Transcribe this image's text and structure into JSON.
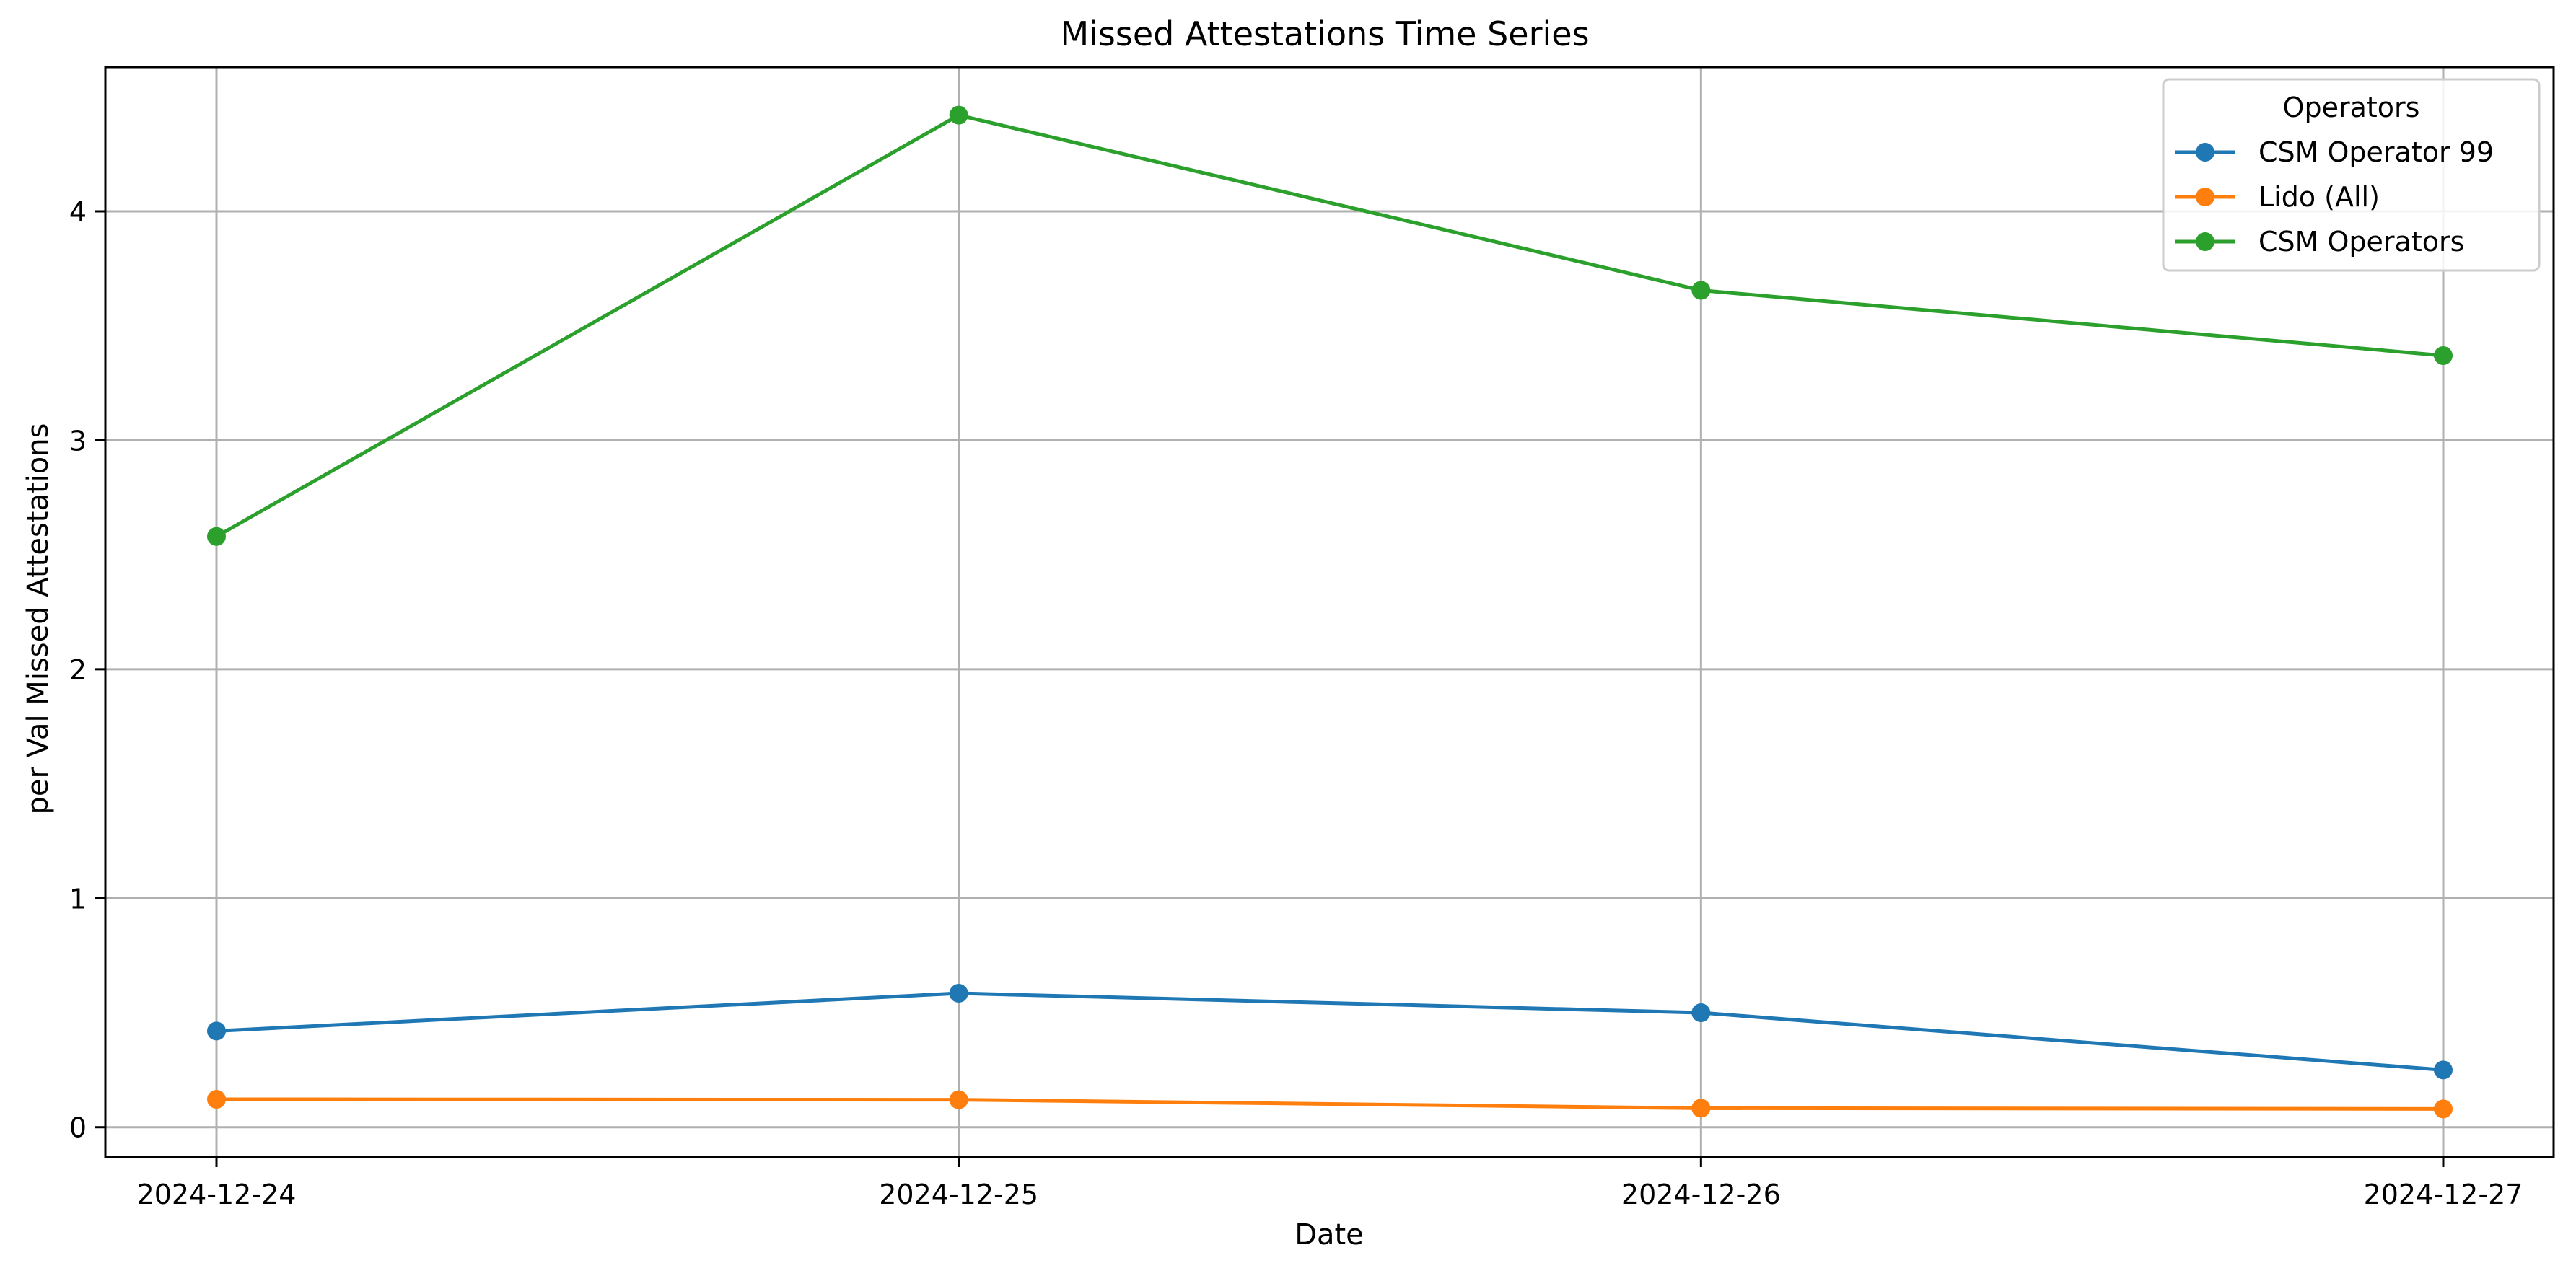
{
  "chart_data": {
    "type": "line",
    "title": "Missed Attestations Time Series",
    "xlabel": "Date",
    "ylabel": "per Val Missed Attestations",
    "x": [
      "2024-12-24",
      "2024-12-25",
      "2024-12-26",
      "2024-12-27"
    ],
    "ylim": [
      -0.13,
      4.63
    ],
    "y_ticks": [
      "0",
      "1",
      "2",
      "3",
      "4"
    ],
    "grid": true,
    "legend": {
      "title": "Operators",
      "placement": "top-right"
    },
    "series": [
      {
        "name": "CSM Operator 99",
        "color": "#1f77b4",
        "marker": "circle",
        "values": [
          0.42,
          0.585,
          0.5,
          0.25
        ]
      },
      {
        "name": "Lido (All)",
        "color": "#ff7f0e",
        "marker": "circle",
        "values": [
          0.122,
          0.12,
          0.083,
          0.08
        ]
      },
      {
        "name": "CSM Operators",
        "color": "#2ca02c",
        "marker": "circle",
        "values": [
          2.58,
          4.42,
          3.655,
          3.37
        ]
      }
    ]
  }
}
